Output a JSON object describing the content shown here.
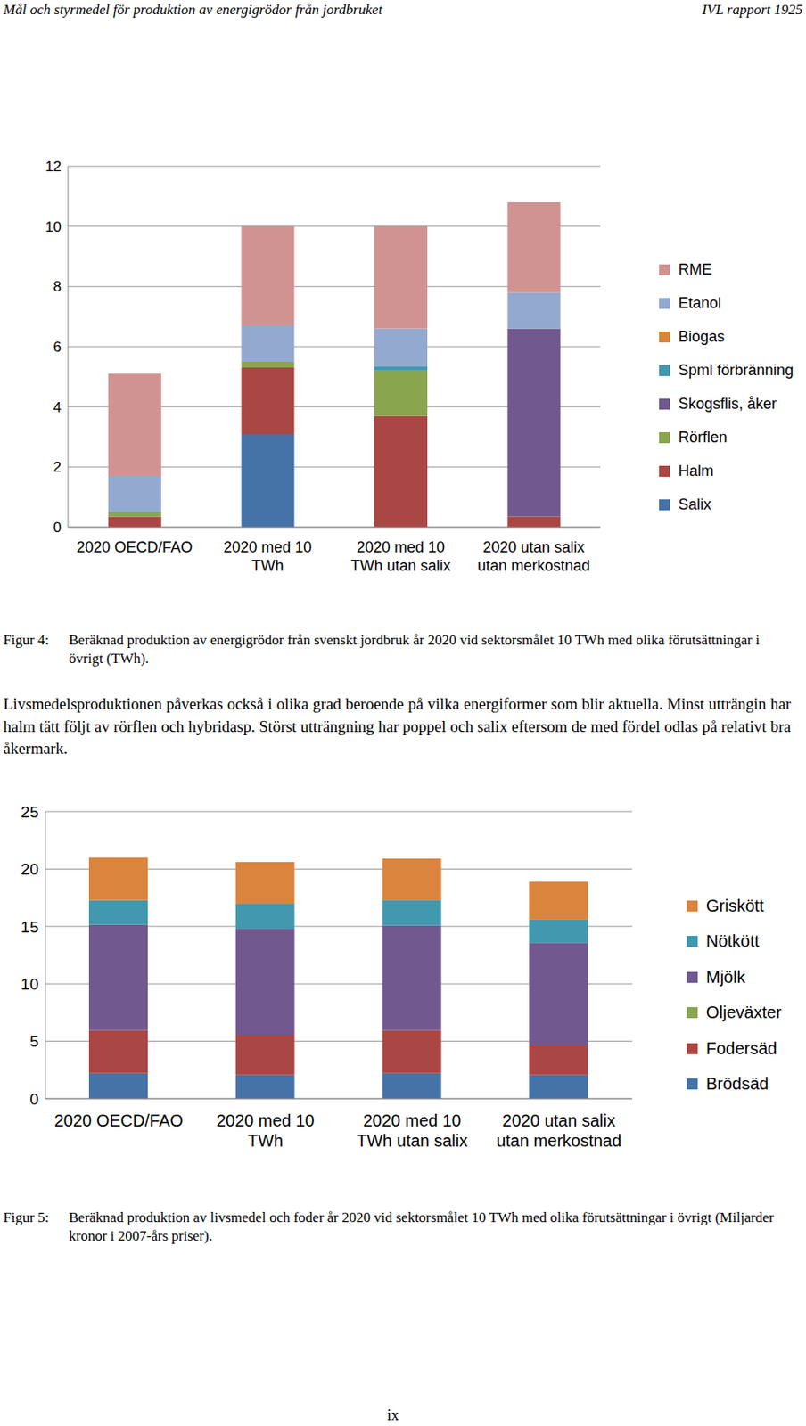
{
  "header": {
    "left": "Mål och styrmedel för produktion av energigrödor från jordbruket",
    "right": "IVL rapport 1925"
  },
  "chart_data": [
    {
      "type": "bar",
      "stacked": true,
      "grid": true,
      "legend": "right",
      "categories": [
        "2020 OECD/FAO",
        "2020 med 10 TWh",
        "2020 med 10 TWh utan salix",
        "2020 utan salix utan merkostnad"
      ],
      "ylim": [
        0,
        12
      ],
      "yticks": [
        0,
        2,
        4,
        6,
        8,
        10,
        12
      ],
      "series": [
        {
          "name": "Salix",
          "color": "#4572A7",
          "values": [
            0,
            3.1,
            0,
            0
          ]
        },
        {
          "name": "Halm",
          "color": "#AA4643",
          "values": [
            0.35,
            2.2,
            3.7,
            0.35
          ]
        },
        {
          "name": "Rörflen",
          "color": "#89A54E",
          "values": [
            0.15,
            0.2,
            1.5,
            0
          ]
        },
        {
          "name": "Skogsflis, åker",
          "color": "#71588F",
          "values": [
            0,
            0,
            0,
            6.25
          ]
        },
        {
          "name": "Spml förbränning",
          "color": "#4198AF",
          "values": [
            0,
            0,
            0.15,
            0
          ]
        },
        {
          "name": "Biogas",
          "color": "#DB843D",
          "values": [
            0,
            0,
            0,
            0
          ]
        },
        {
          "name": "Etanol",
          "color": "#93A9CF",
          "values": [
            1.2,
            1.2,
            1.25,
            1.2
          ]
        },
        {
          "name": "RME",
          "color": "#D19392",
          "values": [
            3.4,
            3.3,
            3.4,
            3.0
          ]
        }
      ]
    },
    {
      "type": "bar",
      "stacked": true,
      "grid": true,
      "legend": "right",
      "categories": [
        "2020 OECD/FAO",
        "2020 med 10 TWh",
        "2020 med 10 TWh utan salix",
        "2020 utan salix utan merkostnad"
      ],
      "ylim": [
        0,
        25
      ],
      "yticks": [
        0,
        5,
        10,
        15,
        20,
        25
      ],
      "series": [
        {
          "name": "Brödsäd",
          "color": "#4572A7",
          "values": [
            2.22,
            2.06,
            2.22,
            2.06
          ]
        },
        {
          "name": "Fodersäd",
          "color": "#AA4643",
          "values": [
            3.73,
            3.5,
            3.73,
            2.54
          ]
        },
        {
          "name": "Oljeväxter",
          "color": "#89A54E",
          "values": [
            0,
            0,
            0,
            0
          ]
        },
        {
          "name": "Mjölk",
          "color": "#71588F",
          "values": [
            9.2,
            9.2,
            9.15,
            8.97
          ]
        },
        {
          "name": "Nötkött",
          "color": "#4198AF",
          "values": [
            2.14,
            2.2,
            2.2,
            2.06
          ]
        },
        {
          "name": "Griskött",
          "color": "#DB843D",
          "values": [
            3.7,
            3.65,
            3.6,
            3.27
          ]
        }
      ]
    }
  ],
  "captions": [
    {
      "label": "Figur 4:",
      "text": "Beräknad produktion av energigrödor från svenskt jordbruk år 2020 vid sektorsmålet 10 TWh med olika förutsättningar i övrigt (TWh)."
    },
    {
      "label": "Figur 5:",
      "text": "Beräknad produktion av livsmedel och foder år 2020 vid sektorsmålet 10 TWh med olika förutsättningar i övrigt (Miljarder kronor i 2007-års priser)."
    }
  ],
  "paragraph": "Livsmedelsproduktionen påverkas också i olika grad beroende på vilka energiformer som blir aktuella. Minst utträngin har halm tätt följt av rörflen och hybridasp. Störst utträngning har poppel och salix eftersom de med fördel odlas på relativt bra åkermark.",
  "page_number": "ix"
}
